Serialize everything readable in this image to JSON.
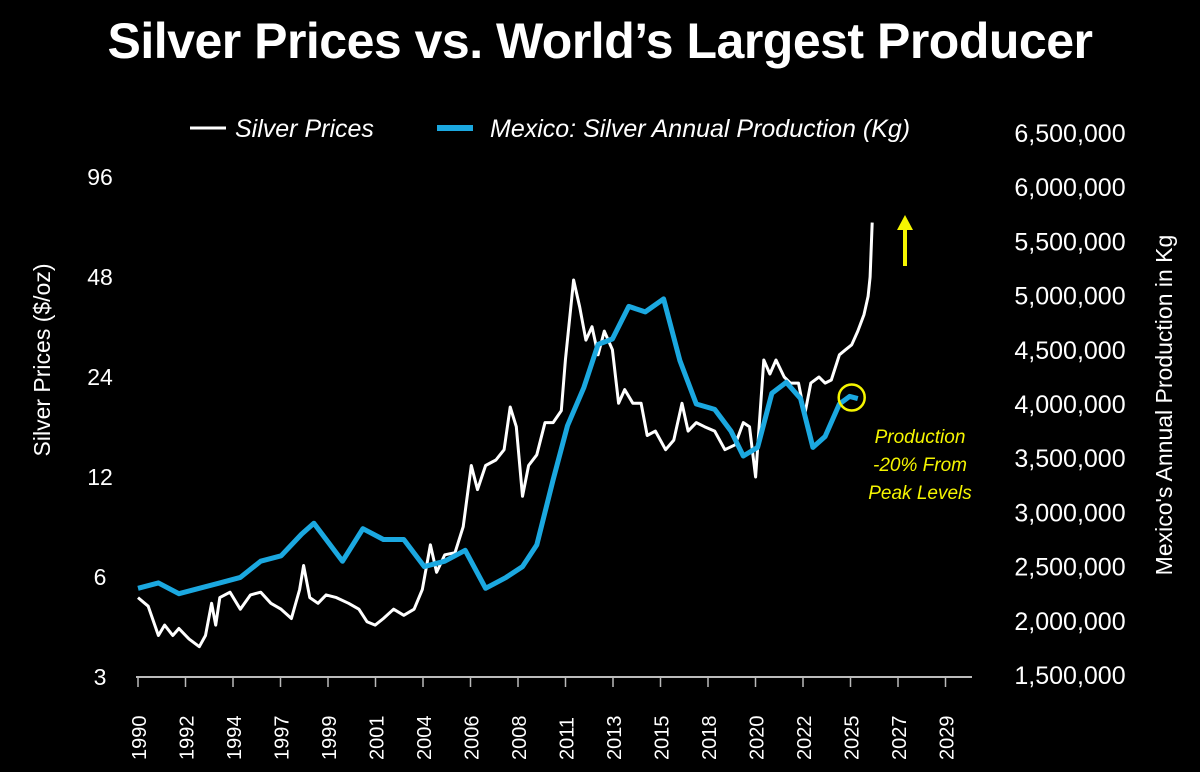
{
  "chart_data": {
    "type": "line",
    "title": "Silver Prices vs. World’s Largest Producer",
    "legend_position": "top",
    "grid": false,
    "xlabel": "",
    "x_tick_labels": [
      "1990",
      "1992",
      "1994",
      "1997",
      "1999",
      "2001",
      "2004",
      "2006",
      "2008",
      "2011",
      "2013",
      "2015",
      "2018",
      "2020",
      "2022",
      "2025",
      "2027",
      "2029"
    ],
    "y_left": {
      "label": "Silver Prices ($/oz)",
      "scale": "log2",
      "range": [
        3,
        96
      ],
      "tick_labels": [
        "3",
        "6",
        "12",
        "24",
        "48",
        "96"
      ]
    },
    "y_right": {
      "label": "Mexico's Annual Production in Kg",
      "scale": "linear",
      "range": [
        1500000,
        6500000
      ],
      "tick_labels": [
        "1,500,000",
        "2,000,000",
        "2,500,000",
        "3,000,000",
        "3,500,000",
        "4,000,000",
        "4,500,000",
        "5,000,000",
        "5,500,000",
        "6,000,000",
        "6,500,000"
      ]
    },
    "series": [
      {
        "name": "Silver Prices",
        "axis": "left",
        "color": "#ffffff",
        "points": [
          [
            1990.0,
            5.2
          ],
          [
            1990.5,
            4.9
          ],
          [
            1991.0,
            4.0
          ],
          [
            1991.3,
            4.3
          ],
          [
            1991.7,
            4.0
          ],
          [
            1992.0,
            4.2
          ],
          [
            1992.5,
            3.9
          ],
          [
            1993.0,
            3.7
          ],
          [
            1993.3,
            4.0
          ],
          [
            1993.6,
            5.0
          ],
          [
            1993.8,
            4.3
          ],
          [
            1994.0,
            5.2
          ],
          [
            1994.5,
            5.4
          ],
          [
            1995.0,
            4.8
          ],
          [
            1995.5,
            5.3
          ],
          [
            1996.0,
            5.4
          ],
          [
            1996.5,
            5.0
          ],
          [
            1997.0,
            4.8
          ],
          [
            1997.5,
            4.5
          ],
          [
            1997.9,
            5.5
          ],
          [
            1998.1,
            6.5
          ],
          [
            1998.4,
            5.2
          ],
          [
            1998.8,
            5.0
          ],
          [
            1999.2,
            5.3
          ],
          [
            1999.7,
            5.2
          ],
          [
            2000.3,
            5.0
          ],
          [
            2000.8,
            4.8
          ],
          [
            2001.2,
            4.4
          ],
          [
            2001.6,
            4.3
          ],
          [
            2002.0,
            4.5
          ],
          [
            2002.5,
            4.8
          ],
          [
            2003.0,
            4.6
          ],
          [
            2003.5,
            4.8
          ],
          [
            2003.9,
            5.5
          ],
          [
            2004.3,
            7.5
          ],
          [
            2004.6,
            6.2
          ],
          [
            2005.0,
            7.0
          ],
          [
            2005.5,
            7.1
          ],
          [
            2005.9,
            8.5
          ],
          [
            2006.3,
            13.0
          ],
          [
            2006.6,
            11.0
          ],
          [
            2007.0,
            13.0
          ],
          [
            2007.5,
            13.5
          ],
          [
            2007.9,
            14.5
          ],
          [
            2008.2,
            19.5
          ],
          [
            2008.5,
            17.0
          ],
          [
            2008.8,
            10.5
          ],
          [
            2009.1,
            13.0
          ],
          [
            2009.5,
            14.0
          ],
          [
            2009.9,
            17.5
          ],
          [
            2010.3,
            17.5
          ],
          [
            2010.7,
            19.0
          ],
          [
            2010.9,
            27
          ],
          [
            2011.3,
            47
          ],
          [
            2011.6,
            39
          ],
          [
            2011.9,
            31
          ],
          [
            2012.2,
            34
          ],
          [
            2012.5,
            28
          ],
          [
            2012.8,
            33
          ],
          [
            2013.2,
            29
          ],
          [
            2013.5,
            20
          ],
          [
            2013.8,
            22
          ],
          [
            2014.2,
            20
          ],
          [
            2014.6,
            20
          ],
          [
            2014.9,
            16
          ],
          [
            2015.3,
            16.5
          ],
          [
            2015.8,
            14.5
          ],
          [
            2016.2,
            15.5
          ],
          [
            2016.6,
            20
          ],
          [
            2016.9,
            16.5
          ],
          [
            2017.3,
            17.5
          ],
          [
            2017.7,
            17
          ],
          [
            2018.2,
            16.5
          ],
          [
            2018.7,
            14.5
          ],
          [
            2019.2,
            15
          ],
          [
            2019.6,
            17.5
          ],
          [
            2019.9,
            17
          ],
          [
            2020.2,
            12
          ],
          [
            2020.6,
            27
          ],
          [
            2020.9,
            24.5
          ],
          [
            2021.2,
            27
          ],
          [
            2021.6,
            24
          ],
          [
            2021.9,
            23
          ],
          [
            2022.3,
            23
          ],
          [
            2022.6,
            18.5
          ],
          [
            2022.9,
            23
          ],
          [
            2023.3,
            24
          ],
          [
            2023.6,
            23
          ],
          [
            2023.9,
            23.5
          ],
          [
            2024.3,
            28
          ],
          [
            2024.6,
            29
          ],
          [
            2024.9,
            30
          ],
          [
            2025.2,
            33
          ],
          [
            2025.5,
            37
          ],
          [
            2025.7,
            42
          ],
          [
            2025.8,
            48
          ],
          [
            2025.9,
            70
          ]
        ]
      },
      {
        "name": "Mexico: Silver Annual Production (Kg)",
        "axis": "right",
        "color": "#1ba8e0",
        "points": [
          [
            1990.0,
            2300000
          ],
          [
            1991.0,
            2350000
          ],
          [
            1992.0,
            2250000
          ],
          [
            1993.0,
            2300000
          ],
          [
            1994.0,
            2350000
          ],
          [
            1995.0,
            2400000
          ],
          [
            1996.0,
            2550000
          ],
          [
            1997.0,
            2600000
          ],
          [
            1998.0,
            2800000
          ],
          [
            1998.6,
            2900000
          ],
          [
            1999.4,
            2700000
          ],
          [
            2000.0,
            2550000
          ],
          [
            2001.0,
            2850000
          ],
          [
            2002.0,
            2750000
          ],
          [
            2003.0,
            2750000
          ],
          [
            2004.0,
            2500000
          ],
          [
            2005.0,
            2550000
          ],
          [
            2006.0,
            2650000
          ],
          [
            2007.0,
            2300000
          ],
          [
            2008.0,
            2400000
          ],
          [
            2008.8,
            2500000
          ],
          [
            2009.5,
            2700000
          ],
          [
            2010.3,
            3300000
          ],
          [
            2011.0,
            3800000
          ],
          [
            2011.8,
            4150000
          ],
          [
            2012.5,
            4550000
          ],
          [
            2013.2,
            4600000
          ],
          [
            2014.0,
            4900000
          ],
          [
            2014.8,
            4850000
          ],
          [
            2015.7,
            4970000
          ],
          [
            2016.5,
            4400000
          ],
          [
            2017.3,
            4000000
          ],
          [
            2018.2,
            3950000
          ],
          [
            2019.0,
            3750000
          ],
          [
            2019.6,
            3520000
          ],
          [
            2020.3,
            3600000
          ],
          [
            2021.0,
            4100000
          ],
          [
            2021.7,
            4200000
          ],
          [
            2022.4,
            4050000
          ],
          [
            2023.0,
            3600000
          ],
          [
            2023.6,
            3700000
          ],
          [
            2024.3,
            4000000
          ],
          [
            2024.8,
            4070000
          ],
          [
            2025.2,
            4050000
          ]
        ]
      }
    ],
    "annotations": {
      "note_lines": [
        "Production",
        "-20% From",
        "Peak Levels"
      ],
      "color": "#f5f500",
      "arrow": "up-arrow",
      "circle_at": [
        2024.9,
        4060000
      ]
    }
  }
}
